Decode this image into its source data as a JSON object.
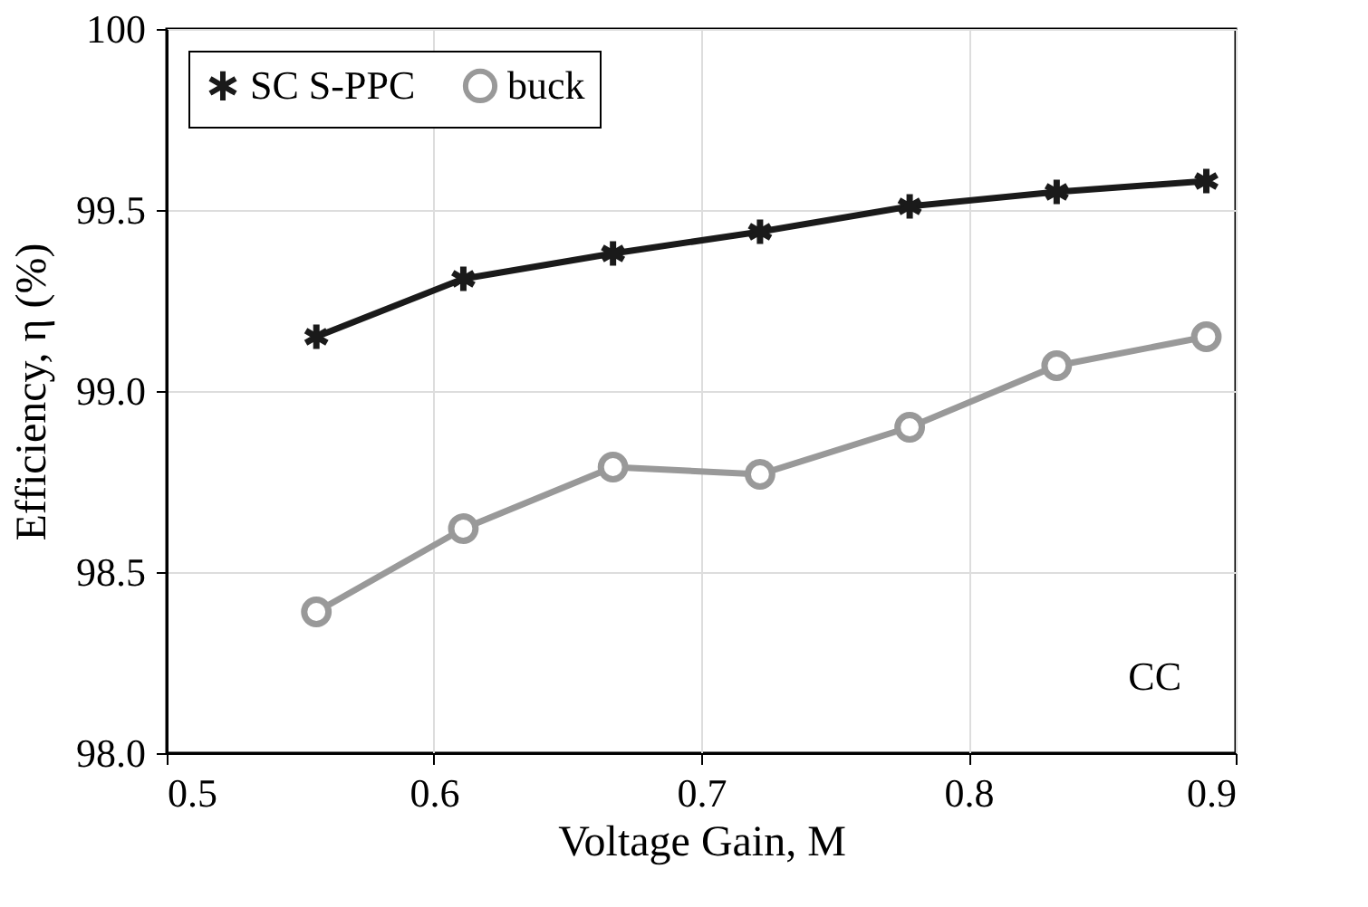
{
  "chart_data": {
    "type": "line",
    "xlabel": "Voltage Gain, M",
    "ylabel": "Efficiency, η (%)",
    "x": [
      0.556,
      0.611,
      0.667,
      0.722,
      0.778,
      0.833,
      0.889
    ],
    "series": [
      {
        "name": "SC S-PPC",
        "color": "#1a1a1a",
        "marker": "cross",
        "values": [
          99.15,
          99.31,
          99.38,
          99.44,
          99.51,
          99.55,
          99.58
        ]
      },
      {
        "name": "buck",
        "color": "#999999",
        "marker": "circle",
        "values": [
          98.39,
          98.62,
          98.79,
          98.77,
          98.9,
          99.07,
          99.15
        ]
      }
    ],
    "xlim": [
      0.5,
      0.9
    ],
    "xticks": [
      0.5,
      0.6,
      0.7,
      0.8,
      0.9
    ],
    "ylim": [
      98.0,
      100
    ],
    "yticks": [
      {
        "value": 98.0,
        "label": "98.0"
      },
      {
        "value": 98.5,
        "label": "98.5"
      },
      {
        "value": 99.0,
        "label": "99.0"
      },
      {
        "value": 99.5,
        "label": "99.5"
      },
      {
        "value": 100,
        "label": "100"
      }
    ],
    "annotations": [
      "CC"
    ],
    "grid": true,
    "legend": "top left",
    "line_style": "solid"
  }
}
